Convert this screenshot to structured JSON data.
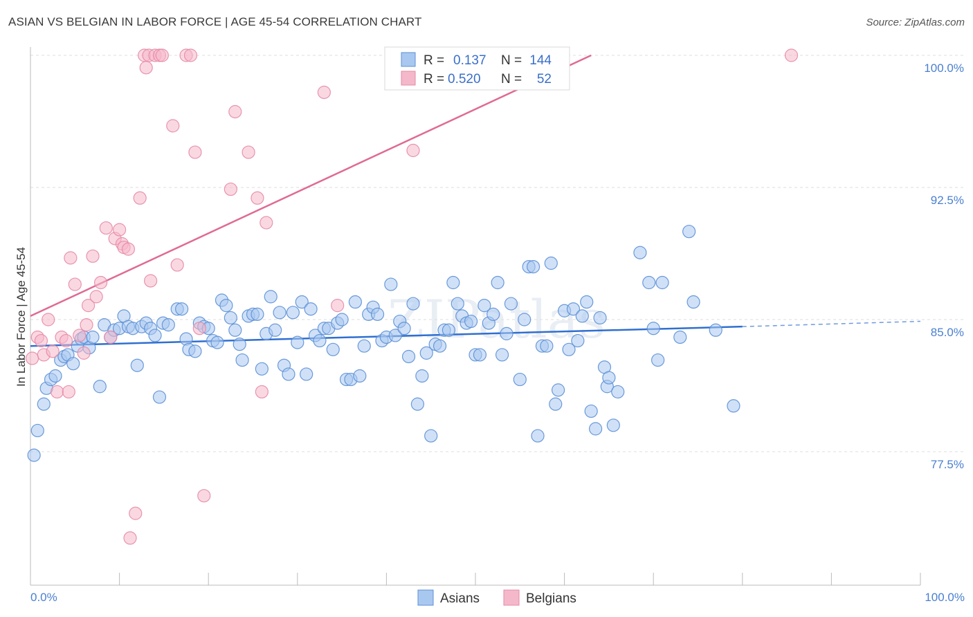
{
  "title": "ASIAN VS BELGIAN IN LABOR FORCE | AGE 45-54 CORRELATION CHART",
  "source": "Source: ZipAtlas.com",
  "watermark": "ZIPatlas",
  "chart_data": {
    "type": "scatter",
    "ylabel": "In Labor Force | Age 45-54",
    "xlim": [
      0,
      100
    ],
    "ylim": [
      71.0,
      101.5
    ],
    "x_tick_labels": [
      "0.0%",
      "100.0%"
    ],
    "y_ticks": [
      {
        "value": 100.0,
        "label": "100.0%"
      },
      {
        "value": 92.5,
        "label": "92.5%"
      },
      {
        "value": 85.0,
        "label": "85.0%"
      },
      {
        "value": 77.5,
        "label": "77.5%"
      }
    ],
    "legend": {
      "rows": [
        {
          "r_label": "R =",
          "r_value": "0.137",
          "n_label": "N =",
          "n_value": "144",
          "color": "#a9c8f0"
        },
        {
          "r_label": "R =",
          "r_value": "0.520",
          "n_label": "N =",
          "n_value": "52",
          "color": "#f5b8cb"
        }
      ]
    },
    "series": [
      {
        "name": "Asians",
        "color": "#a9c8f0",
        "edge": "#5b8fd6",
        "trend": {
          "x": [
            0,
            80
          ],
          "y": [
            83.5,
            84.6
          ],
          "dashed_to_x": 100,
          "dashed_to_y": 84.9,
          "color": "#2f6fd0"
        },
        "points": [
          [
            0.4,
            77.3
          ],
          [
            0.8,
            78.7
          ],
          [
            1.5,
            80.2
          ],
          [
            1.8,
            81.1
          ],
          [
            2.3,
            81.6
          ],
          [
            2.8,
            81.8
          ],
          [
            3.4,
            82.7
          ],
          [
            3.8,
            82.9
          ],
          [
            4.2,
            83.0
          ],
          [
            4.8,
            82.5
          ],
          [
            5.3,
            83.5
          ],
          [
            5.7,
            83.9
          ],
          [
            6.0,
            84.0
          ],
          [
            6.6,
            83.4
          ],
          [
            7.0,
            84.0
          ],
          [
            7.8,
            81.2
          ],
          [
            8.3,
            84.7
          ],
          [
            9.0,
            84.0
          ],
          [
            9.4,
            84.4
          ],
          [
            10.0,
            84.5
          ],
          [
            10.5,
            85.2
          ],
          [
            11.0,
            84.6
          ],
          [
            11.5,
            84.5
          ],
          [
            12.0,
            82.4
          ],
          [
            12.5,
            84.6
          ],
          [
            13.0,
            84.8
          ],
          [
            13.5,
            84.5
          ],
          [
            14.0,
            84.1
          ],
          [
            14.5,
            80.6
          ],
          [
            14.9,
            84.8
          ],
          [
            15.5,
            84.7
          ],
          [
            16.5,
            85.6
          ],
          [
            17.0,
            85.6
          ],
          [
            17.5,
            83.9
          ],
          [
            17.8,
            83.3
          ],
          [
            18.5,
            83.2
          ],
          [
            19.0,
            84.8
          ],
          [
            19.5,
            84.6
          ],
          [
            20.0,
            84.5
          ],
          [
            20.5,
            83.8
          ],
          [
            21.0,
            83.7
          ],
          [
            21.5,
            86.1
          ],
          [
            22.0,
            85.8
          ],
          [
            22.5,
            85.1
          ],
          [
            23.0,
            84.4
          ],
          [
            23.5,
            83.6
          ],
          [
            23.8,
            82.7
          ],
          [
            24.5,
            85.2
          ],
          [
            25.0,
            85.3
          ],
          [
            25.5,
            85.3
          ],
          [
            26.0,
            82.2
          ],
          [
            26.5,
            84.2
          ],
          [
            27.0,
            86.3
          ],
          [
            27.5,
            84.4
          ],
          [
            28.0,
            85.4
          ],
          [
            28.5,
            82.4
          ],
          [
            29.0,
            81.9
          ],
          [
            29.5,
            85.4
          ],
          [
            30.0,
            83.7
          ],
          [
            30.5,
            86.0
          ],
          [
            31.0,
            81.9
          ],
          [
            31.5,
            85.6
          ],
          [
            32.0,
            84.1
          ],
          [
            32.5,
            83.8
          ],
          [
            33.0,
            84.5
          ],
          [
            33.5,
            84.5
          ],
          [
            34.0,
            83.3
          ],
          [
            34.5,
            84.8
          ],
          [
            35.0,
            85.0
          ],
          [
            35.5,
            81.6
          ],
          [
            36.0,
            81.6
          ],
          [
            36.5,
            86.0
          ],
          [
            37.0,
            81.8
          ],
          [
            37.5,
            83.5
          ],
          [
            38.0,
            85.3
          ],
          [
            38.5,
            85.7
          ],
          [
            39.0,
            85.3
          ],
          [
            39.5,
            83.8
          ],
          [
            40.0,
            84.0
          ],
          [
            40.5,
            87.0
          ],
          [
            41.0,
            84.1
          ],
          [
            41.5,
            84.9
          ],
          [
            42.0,
            84.5
          ],
          [
            42.5,
            82.9
          ],
          [
            43.0,
            85.9
          ],
          [
            43.5,
            80.2
          ],
          [
            44.0,
            81.8
          ],
          [
            44.5,
            83.1
          ],
          [
            45.0,
            78.4
          ],
          [
            45.5,
            83.6
          ],
          [
            46.0,
            83.5
          ],
          [
            46.5,
            84.4
          ],
          [
            47.0,
            84.4
          ],
          [
            47.5,
            87.1
          ],
          [
            48.0,
            85.9
          ],
          [
            48.5,
            85.2
          ],
          [
            49.0,
            84.8
          ],
          [
            49.5,
            84.9
          ],
          [
            50.0,
            83.0
          ],
          [
            50.5,
            83.0
          ],
          [
            51.0,
            85.8
          ],
          [
            51.5,
            84.8
          ],
          [
            52.0,
            85.3
          ],
          [
            52.5,
            87.1
          ],
          [
            53.0,
            83.0
          ],
          [
            53.5,
            84.2
          ],
          [
            54.0,
            85.9
          ],
          [
            55.0,
            81.6
          ],
          [
            55.5,
            85.0
          ],
          [
            56.0,
            88.0
          ],
          [
            56.5,
            88.0
          ],
          [
            57.0,
            78.4
          ],
          [
            57.5,
            83.5
          ],
          [
            58.0,
            83.5
          ],
          [
            58.5,
            88.2
          ],
          [
            59.0,
            80.2
          ],
          [
            59.3,
            81.0
          ],
          [
            60.0,
            85.5
          ],
          [
            60.5,
            83.3
          ],
          [
            61.0,
            85.6
          ],
          [
            61.5,
            83.8
          ],
          [
            62.0,
            85.2
          ],
          [
            62.5,
            86.0
          ],
          [
            63.0,
            79.8
          ],
          [
            63.5,
            78.8
          ],
          [
            64.0,
            85.1
          ],
          [
            64.5,
            82.3
          ],
          [
            64.8,
            81.2
          ],
          [
            65.0,
            81.7
          ],
          [
            65.5,
            79.0
          ],
          [
            66.0,
            80.9
          ],
          [
            68.5,
            88.8
          ],
          [
            69.5,
            87.1
          ],
          [
            70.0,
            84.5
          ],
          [
            70.5,
            82.7
          ],
          [
            71.0,
            87.1
          ],
          [
            73.0,
            84.0
          ],
          [
            74.0,
            90.0
          ],
          [
            74.5,
            86.0
          ],
          [
            77.0,
            84.4
          ],
          [
            79.0,
            80.1
          ]
        ]
      },
      {
        "name": "Belgians",
        "color": "#f5b8cb",
        "edge": "#e58aa6",
        "trend": {
          "x": [
            0,
            63
          ],
          "y": [
            85.2,
            100.0
          ],
          "color": "#e06a94"
        },
        "points": [
          [
            0.2,
            82.8
          ],
          [
            0.8,
            84.0
          ],
          [
            1.2,
            83.8
          ],
          [
            1.5,
            83.0
          ],
          [
            2.0,
            85.0
          ],
          [
            2.5,
            83.2
          ],
          [
            3.0,
            80.9
          ],
          [
            3.5,
            84.0
          ],
          [
            4.0,
            83.8
          ],
          [
            4.3,
            80.9
          ],
          [
            4.5,
            88.5
          ],
          [
            5.0,
            87.0
          ],
          [
            5.5,
            84.1
          ],
          [
            6.0,
            83.1
          ],
          [
            6.3,
            84.7
          ],
          [
            6.5,
            85.8
          ],
          [
            7.0,
            88.6
          ],
          [
            7.4,
            86.3
          ],
          [
            7.9,
            87.1
          ],
          [
            8.5,
            90.2
          ],
          [
            9.0,
            84.0
          ],
          [
            9.5,
            89.6
          ],
          [
            10.0,
            90.1
          ],
          [
            10.3,
            89.3
          ],
          [
            10.5,
            89.1
          ],
          [
            11.0,
            89.0
          ],
          [
            11.2,
            72.6
          ],
          [
            11.8,
            74.0
          ],
          [
            12.3,
            91.9
          ],
          [
            12.8,
            100.0
          ],
          [
            13.0,
            99.3
          ],
          [
            13.3,
            100.0
          ],
          [
            13.5,
            87.2
          ],
          [
            14.0,
            100.0
          ],
          [
            14.5,
            100.0
          ],
          [
            14.8,
            100.0
          ],
          [
            16.0,
            96.0
          ],
          [
            16.5,
            88.1
          ],
          [
            17.5,
            100.0
          ],
          [
            18.0,
            100.0
          ],
          [
            18.5,
            94.5
          ],
          [
            19.0,
            84.5
          ],
          [
            19.5,
            75.0
          ],
          [
            22.5,
            92.4
          ],
          [
            23.0,
            96.8
          ],
          [
            24.5,
            94.5
          ],
          [
            25.5,
            91.9
          ],
          [
            26.0,
            80.9
          ],
          [
            26.5,
            90.5
          ],
          [
            33.0,
            97.9
          ],
          [
            34.5,
            85.8
          ],
          [
            43.0,
            94.6
          ],
          [
            85.5,
            100.0
          ]
        ]
      }
    ]
  }
}
